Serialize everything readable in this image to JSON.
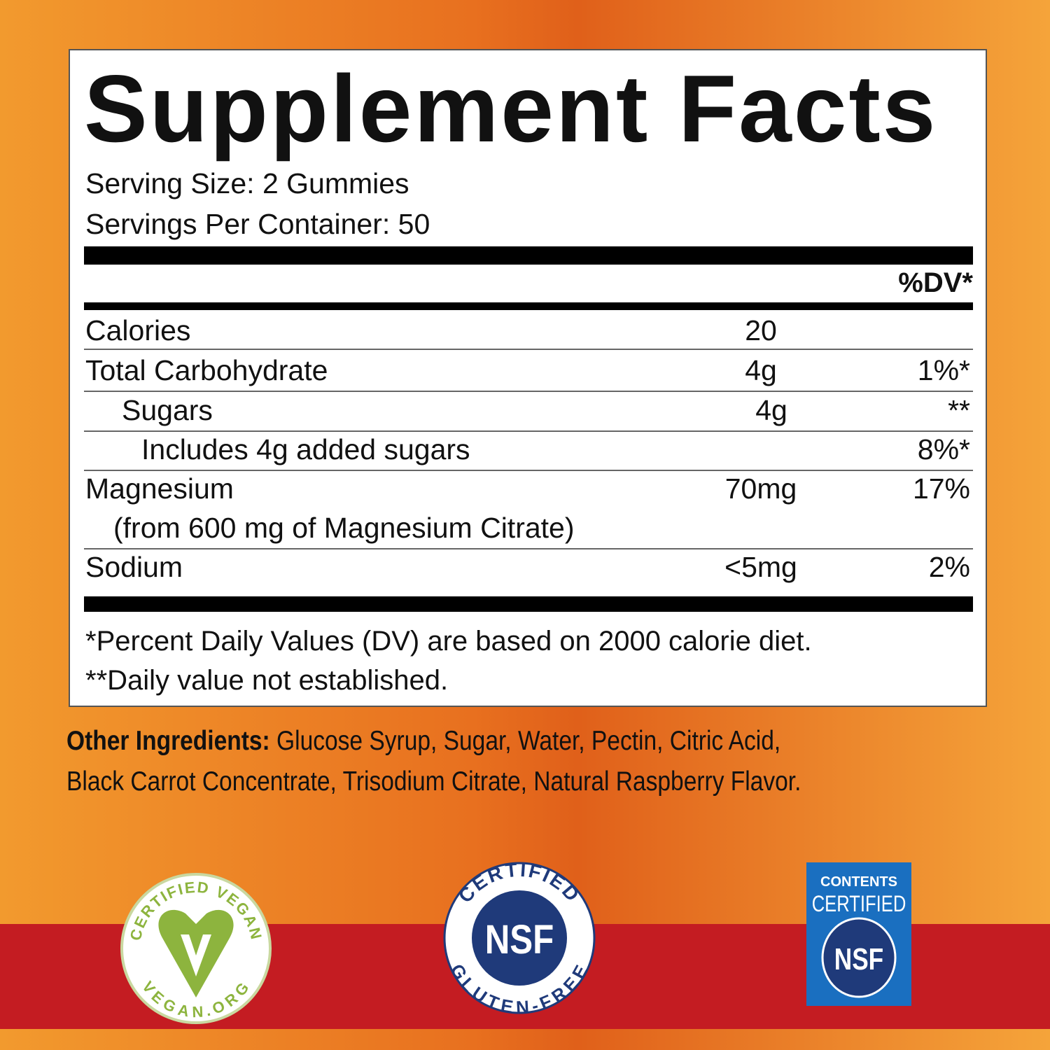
{
  "title": "Supplement Facts",
  "serving_size": "Serving Size: 2 Gummies",
  "servings_per_container": "Servings Per Container: 50",
  "dv_header": "%DV*",
  "rows": [
    {
      "name": "Calories",
      "amount": "20",
      "dv": ""
    },
    {
      "name": "Total Carbohydrate",
      "amount": "4g",
      "dv": "1%*"
    },
    {
      "name": "Sugars",
      "amount": "4g",
      "dv": "**"
    },
    {
      "name": "Includes 4g added sugars",
      "amount": "",
      "dv": "8%*"
    },
    {
      "name": "Magnesium",
      "amount": "70mg",
      "dv": "17%",
      "sub": "(from 600 mg of Magnesium Citrate)"
    },
    {
      "name": "Sodium",
      "amount": "<5mg",
      "dv": "2%"
    }
  ],
  "footnotes": [
    "*Percent Daily Values (DV) are based on 2000 calorie diet.",
    "**Daily value not established."
  ],
  "other_ingredients": {
    "label": "Other Ingredients:",
    "text": "Glucose Syrup, Sugar, Water, Pectin, Citric Acid, Black Carrot Concentrate, Trisodium Citrate, Natural Raspberry Flavor."
  },
  "badges": {
    "vegan": {
      "top": "CERTIFIED VEGAN",
      "bottom": "VEGAN.ORG",
      "color": "#8db43e"
    },
    "gluten_free": {
      "top": "CERTIFIED",
      "center": "NSF",
      "bottom": "GLUTEN-FREE",
      "color": "#1f3a7a"
    },
    "contents": {
      "line1": "CONTENTS",
      "line2": "CERTIFIED",
      "center": "NSF",
      "color": "#1a6fc0"
    }
  }
}
